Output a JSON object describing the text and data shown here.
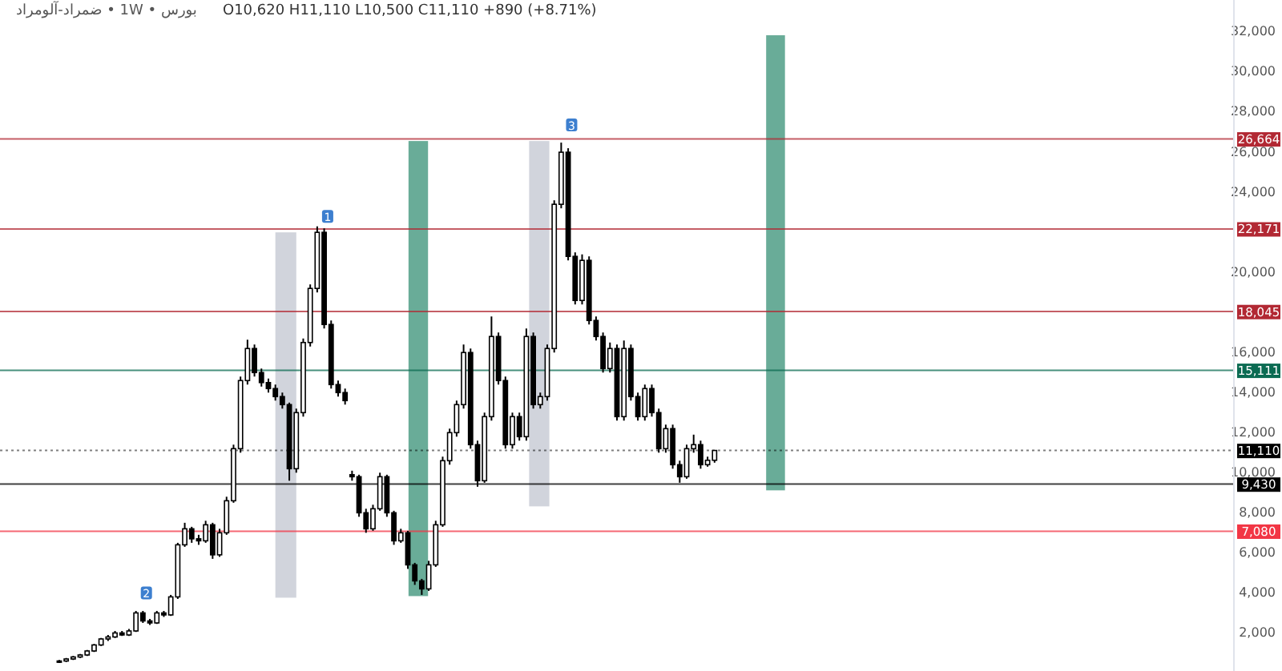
{
  "chart_data": {
    "type": "candlestick",
    "title": "بورس • 1W • ضمراد-آلومراد",
    "annotations": [
      "O10,620 H11,110 L10,500 C11,110 +890 (+8.71%)",
      {
        "text": "1",
        "y": 22800
      },
      {
        "text": "2",
        "y": 4000
      },
      {
        "text": "3",
        "y": 27360
      }
    ],
    "categories": [
      null,
      null,
      null,
      null,
      null,
      null,
      null,
      null,
      null,
      null,
      null,
      null,
      null,
      null,
      null,
      null,
      null,
      null,
      null,
      null,
      null,
      null,
      null,
      null,
      null,
      null,
      null,
      null,
      null,
      null,
      null,
      null,
      null,
      null,
      null,
      null,
      null,
      null,
      null,
      null,
      null,
      null,
      null,
      null,
      null,
      null,
      null,
      null,
      null,
      null,
      null,
      null,
      null,
      null,
      null,
      null,
      null,
      null,
      null,
      null,
      null,
      null,
      null,
      null,
      null,
      null,
      null,
      null,
      null,
      null,
      null,
      null,
      null,
      null,
      null,
      null,
      null,
      null,
      null,
      null,
      null,
      null,
      null,
      null,
      null,
      null,
      null,
      null,
      null,
      null,
      null,
      null,
      null,
      null,
      null,
      null,
      null,
      null,
      null,
      null,
      null,
      null,
      null,
      null,
      null,
      null,
      null,
      null,
      null,
      null,
      null,
      null,
      null,
      null,
      null,
      null,
      null,
      null,
      null,
      null,
      null,
      null,
      null,
      null,
      null,
      null,
      null,
      null,
      null,
      null,
      null,
      null,
      null,
      null,
      null,
      null,
      null,
      null,
      null,
      null,
      null,
      null,
      null,
      null,
      null,
      null,
      null,
      null,
      null,
      null,
      null,
      null,
      null,
      null,
      null,
      null,
      null,
      null,
      null,
      null,
      null,
      null,
      null,
      null,
      null,
      null,
      null,
      null,
      null,
      null,
      null,
      null,
      null,
      null,
      null,
      null,
      null
    ],
    "ohlc": [
      null,
      null,
      null,
      null,
      null,
      null,
      null,
      null,
      [
        550,
        650,
        500,
        600
      ],
      [
        600,
        750,
        550,
        700
      ],
      [
        700,
        850,
        650,
        800
      ],
      [
        800,
        950,
        750,
        900
      ],
      [
        900,
        1150,
        850,
        1100
      ],
      [
        1100,
        1450,
        1050,
        1400
      ],
      [
        1400,
        1750,
        1350,
        1700
      ],
      [
        1700,
        1900,
        1600,
        1800
      ],
      [
        1800,
        2100,
        1750,
        2000
      ],
      [
        2000,
        2100,
        1850,
        1900
      ],
      [
        1900,
        2200,
        1850,
        2100
      ],
      [
        2100,
        3100,
        2050,
        3000
      ],
      [
        3000,
        3100,
        2500,
        2600
      ],
      [
        2600,
        2700,
        2400,
        2500
      ],
      [
        2500,
        3100,
        2450,
        3000
      ],
      [
        3000,
        3100,
        2800,
        2900
      ],
      [
        2900,
        3900,
        2850,
        3800
      ],
      [
        3800,
        6500,
        3700,
        6400
      ],
      [
        6400,
        7500,
        6300,
        7200
      ],
      [
        7200,
        7300,
        6500,
        6700
      ],
      [
        6700,
        6900,
        6400,
        6600
      ],
      [
        6600,
        7600,
        6500,
        7400
      ],
      [
        7400,
        7500,
        5700,
        5900
      ],
      [
        5900,
        7200,
        5800,
        7000
      ],
      [
        7000,
        8800,
        6900,
        8600
      ],
      [
        8600,
        11400,
        8500,
        11200
      ],
      [
        11200,
        14800,
        11000,
        14600
      ],
      [
        14600,
        16640,
        14400,
        16200
      ],
      [
        16200,
        16400,
        14800,
        15000
      ],
      [
        15000,
        15200,
        14300,
        14500
      ],
      [
        14500,
        14700,
        14000,
        14200
      ],
      [
        14200,
        14400,
        13600,
        13800
      ],
      [
        13800,
        14000,
        13200,
        13400
      ],
      [
        13400,
        13500,
        9600,
        10200
      ],
      [
        10200,
        13200,
        10000,
        13000
      ],
      [
        13000,
        16700,
        12800,
        16500
      ],
      [
        16500,
        19400,
        16300,
        19200
      ],
      [
        19200,
        22300,
        19000,
        22000
      ],
      [
        22000,
        22200,
        17200,
        17400
      ],
      [
        17400,
        17600,
        14200,
        14400
      ],
      [
        14400,
        14600,
        13800,
        14000
      ],
      [
        14000,
        14200,
        13400,
        13600
      ],
      [
        9900,
        10100,
        9600,
        9800
      ],
      [
        9800,
        9900,
        7800,
        8000
      ],
      [
        8000,
        8200,
        7000,
        7200
      ],
      [
        7200,
        8400,
        7100,
        8200
      ],
      [
        8200,
        10000,
        8100,
        9800
      ],
      [
        9800,
        9900,
        7800,
        8000
      ],
      [
        8000,
        8100,
        6400,
        6600
      ],
      [
        6600,
        7200,
        6500,
        7000
      ],
      [
        7000,
        7100,
        5200,
        5400
      ],
      [
        5400,
        5500,
        4400,
        4600
      ],
      [
        4600,
        4700,
        3900,
        4200
      ],
      [
        4200,
        5600,
        4100,
        5400
      ],
      [
        5400,
        7600,
        5300,
        7400
      ],
      [
        7400,
        10800,
        7300,
        10600
      ],
      [
        10600,
        12200,
        10400,
        12000
      ],
      [
        12000,
        13600,
        11800,
        13400
      ],
      [
        13400,
        16400,
        13200,
        16000
      ],
      [
        16000,
        16200,
        11200,
        11400
      ],
      [
        11400,
        11600,
        9300,
        9600
      ],
      [
        9600,
        13000,
        9500,
        12800
      ],
      [
        12800,
        17800,
        12600,
        16800
      ],
      [
        16800,
        17000,
        14400,
        14600
      ],
      [
        14600,
        14800,
        11200,
        11400
      ],
      [
        11400,
        13000,
        11200,
        12800
      ],
      [
        12800,
        13000,
        11600,
        11800
      ],
      [
        11800,
        17200,
        11600,
        16800
      ],
      [
        16800,
        17000,
        13200,
        13400
      ],
      [
        13400,
        14000,
        13200,
        13800
      ],
      [
        13800,
        16400,
        13600,
        16200
      ],
      [
        16200,
        23600,
        16000,
        23400
      ],
      [
        23400,
        26480,
        23200,
        26000
      ],
      [
        26000,
        26200,
        20600,
        20800
      ],
      [
        20800,
        21000,
        18400,
        18600
      ],
      [
        18600,
        20900,
        18400,
        20600
      ],
      [
        20600,
        20800,
        17400,
        17600
      ],
      [
        17600,
        17800,
        16600,
        16800
      ],
      [
        16800,
        17000,
        15000,
        15200
      ],
      [
        15200,
        16500,
        15000,
        16200
      ],
      [
        16200,
        16400,
        12600,
        12800
      ],
      [
        12800,
        16600,
        12600,
        16200
      ],
      [
        16200,
        16400,
        13600,
        13800
      ],
      [
        13800,
        14000,
        12600,
        12800
      ],
      [
        12800,
        14400,
        12600,
        14200
      ],
      [
        14200,
        14400,
        12800,
        13000
      ],
      [
        13000,
        13200,
        11000,
        11200
      ],
      [
        11200,
        12400,
        11000,
        12200
      ],
      [
        12200,
        12400,
        10200,
        10400
      ],
      [
        10400,
        10600,
        9500,
        9800
      ],
      [
        9800,
        11400,
        9700,
        11200
      ],
      [
        11200,
        11900,
        11000,
        11400
      ],
      [
        11400,
        11600,
        10200,
        10400
      ],
      [
        10400,
        10800,
        10300,
        10620
      ],
      [
        10620,
        11110,
        10500,
        11110
      ],
      null,
      null,
      null,
      null,
      null,
      null,
      null,
      null,
      null,
      null,
      null,
      null,
      null,
      null,
      null,
      null,
      null,
      null,
      null,
      null,
      null,
      null,
      null,
      null,
      null,
      null,
      null,
      null,
      null,
      null,
      null,
      null,
      null,
      null,
      null,
      null,
      null,
      null,
      null,
      null,
      null,
      null,
      null,
      null,
      null,
      null,
      null,
      null,
      null,
      null,
      null,
      null,
      null,
      null,
      null,
      null,
      null,
      null,
      null,
      null,
      null,
      null,
      null,
      null,
      null,
      null,
      null,
      null,
      null,
      null,
      null,
      null,
      null,
      null
    ],
    "ylim": [
      100,
      33600
    ],
    "yticks": [
      {
        "value": 2000,
        "label": "2,000"
      },
      {
        "value": 4000,
        "label": "4,000"
      },
      {
        "value": 6000,
        "label": "6,000"
      },
      {
        "value": 8000,
        "label": "8,000"
      },
      {
        "value": 10000,
        "label": "10,000"
      },
      {
        "value": 12000,
        "label": "12,000"
      },
      {
        "value": 14000,
        "label": "14,000"
      },
      {
        "value": 16000,
        "label": "16,000"
      },
      {
        "value": 20000,
        "label": "20,000"
      },
      {
        "value": 24000,
        "label": "24,000"
      },
      {
        "value": 26000,
        "label": "26,000"
      },
      {
        "value": 28000,
        "label": "28,000"
      },
      {
        "value": 30000,
        "label": "30,000"
      },
      {
        "value": 32000,
        "label": "32,000"
      }
    ],
    "ref_lines": [
      {
        "axis": "y",
        "value": 26664,
        "label": "26,664",
        "color": "#b22833"
      },
      {
        "axis": "y",
        "value": 22171,
        "label": "22,171",
        "color": "#b22833"
      },
      {
        "axis": "y",
        "value": 18045,
        "label": "18,045",
        "color": "#b22833"
      },
      {
        "axis": "y",
        "value": 15111,
        "label": "15,111",
        "color": "#0b6b52"
      },
      {
        "axis": "y",
        "value": 11110,
        "label": "11,110",
        "color": "#000000",
        "line_style": "dotted"
      },
      {
        "axis": "y",
        "value": 9430,
        "label": "9,430",
        "color": "#000000"
      },
      {
        "axis": "y",
        "value": 7080,
        "label": "7,080",
        "color": "#f23645"
      }
    ],
    "grid": false
  }
}
